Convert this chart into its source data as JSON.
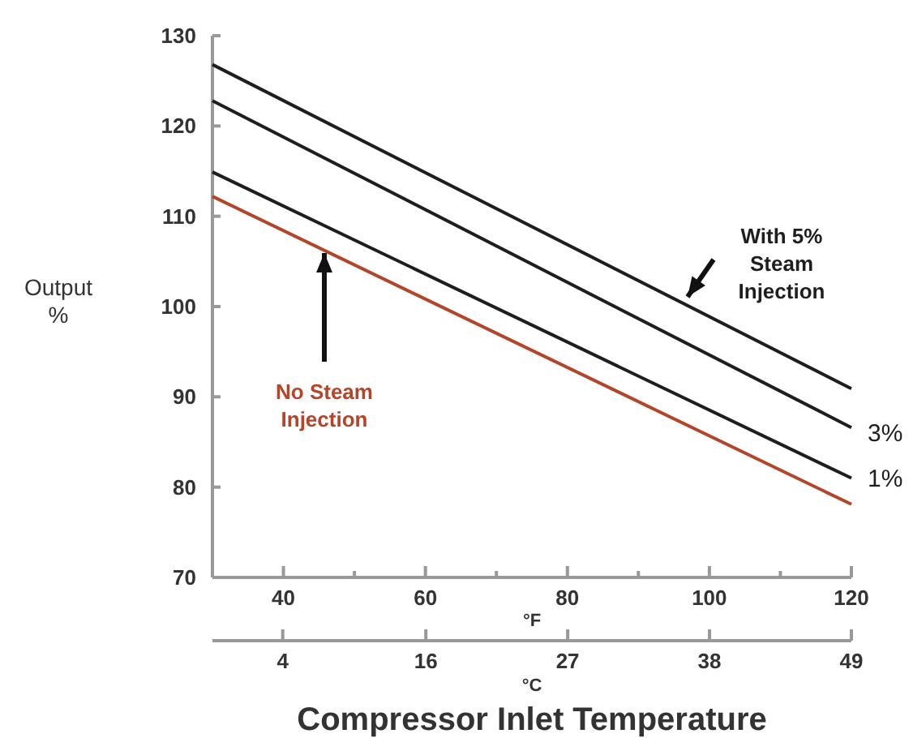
{
  "chart_data": {
    "type": "line",
    "title": "Compressor Inlet Temperature",
    "xlabel": "°F",
    "x2label": "°C",
    "ylabel": "Output %",
    "x": [
      30,
      120
    ],
    "xlim": [
      30,
      120
    ],
    "xticks": [
      40,
      {
        "value": 50,
        "label": null
      },
      60,
      {
        "value": 70,
        "label": null
      },
      80,
      {
        "value": 90,
        "label": null
      },
      100,
      {
        "value": 110,
        "label": null
      },
      120
    ],
    "x2lim": [
      -1.1,
      48.9
    ],
    "x2ticks": [
      {
        "value": 4.4,
        "label": "4"
      },
      {
        "value": 15.6,
        "label": "16"
      },
      {
        "value": 26.7,
        "label": "27"
      },
      {
        "value": 37.8,
        "label": "38"
      },
      {
        "value": 48.9,
        "label": "49"
      }
    ],
    "ylim": [
      70,
      130
    ],
    "yticks": [
      70,
      80,
      90,
      100,
      110,
      120,
      130
    ],
    "series": [
      {
        "name": "With 5% Steam Injection",
        "color": "#1e1e1e",
        "values": [
          126.8,
          90.9
        ]
      },
      {
        "name": "3%",
        "color": "#1e1e1e",
        "values": [
          122.8,
          86.6
        ]
      },
      {
        "name": "1%",
        "color": "#1e1e1e",
        "values": [
          114.9,
          81.0
        ]
      },
      {
        "name": "No Steam Injection",
        "color": "#b5452a",
        "values": [
          112.2,
          78.1
        ]
      }
    ],
    "grid": false,
    "marker": "none",
    "line_style": "solid"
  }
}
